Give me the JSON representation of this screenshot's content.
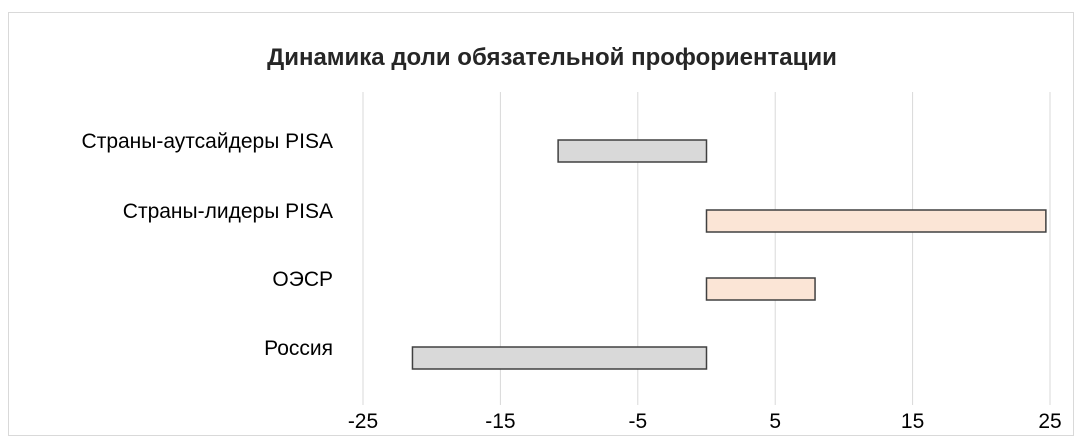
{
  "chart_data": {
    "type": "bar",
    "orientation": "horizontal",
    "title": "Динамика доли обязательной профориентации",
    "categories": [
      "Страны-аутсайдеры PISA",
      "Страны-лидеры PISA",
      "ОЭСР",
      "Россия"
    ],
    "values": [
      -10.8,
      24.7,
      7.9,
      -21.4
    ],
    "xlim": [
      -25,
      25
    ],
    "xticks": [
      -25,
      -15,
      -5,
      5,
      15,
      25
    ],
    "xtick_labels": [
      "-25",
      "-15",
      "-5",
      "5",
      "15",
      "25"
    ],
    "grid": "vertical",
    "legend": "none",
    "colors": {
      "negative": "#d9d9d9",
      "positive": "#fbe5d6",
      "bar_border": "#404040",
      "grid": "#d9d9d9"
    }
  }
}
